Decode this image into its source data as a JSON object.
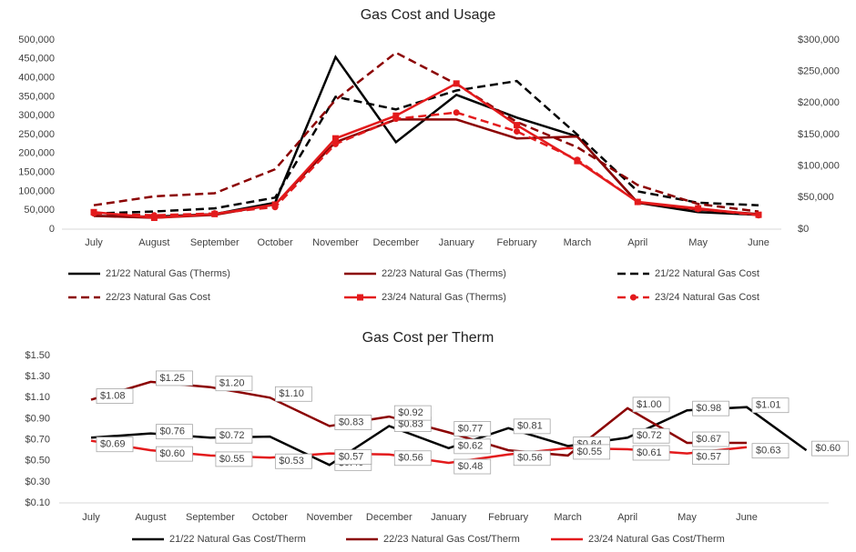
{
  "chart_data": [
    {
      "type": "line",
      "title": "Gas Cost and Usage",
      "categories": [
        "July",
        "August",
        "September",
        "October",
        "November",
        "December",
        "January",
        "February",
        "March",
        "April",
        "May",
        "June"
      ],
      "ylim": [
        0,
        500000
      ],
      "yticks": [
        0,
        {
          "value": 50000,
          "label": "50,000"
        },
        {
          "value": 100000,
          "label": "100,000"
        },
        {
          "value": 150000,
          "label": "150,000"
        },
        {
          "value": 200000,
          "label": "200,000"
        },
        {
          "value": 250000,
          "label": "250,000"
        },
        {
          "value": 300000,
          "label": "300,000"
        },
        {
          "value": 350000,
          "label": "350,000"
        },
        {
          "value": 400000,
          "label": "400,000"
        },
        {
          "value": 450000,
          "label": "450,000"
        },
        {
          "value": 500000,
          "label": "500,000"
        }
      ],
      "y2lim": [
        0,
        300000
      ],
      "y2ticks": [
        {
          "value": 0,
          "label": "$0"
        },
        {
          "value": 50000,
          "label": "$50,000"
        },
        {
          "value": 100000,
          "label": "$100,000"
        },
        {
          "value": 150000,
          "label": "$150,000"
        },
        {
          "value": 200000,
          "label": "$200,000"
        },
        {
          "value": 250000,
          "label": "$250,000"
        },
        {
          "value": 300000,
          "label": "$300,000"
        }
      ],
      "grid": false,
      "legend": "bottom",
      "series": [
        {
          "name": "21/22 Natural Gas (Therms)",
          "color": "#000000",
          "values": [
            35000,
            33000,
            40000,
            70000,
            455000,
            230000,
            355000,
            295000,
            245000,
            70000,
            45000,
            38000
          ]
        },
        {
          "name": "22/23 Natural Gas (Therms)",
          "color": "#8b0000",
          "values": [
            35000,
            30000,
            38000,
            65000,
            230000,
            290000,
            290000,
            240000,
            245000,
            70000,
            52000,
            40000
          ]
        },
        {
          "name": "21/22 Natural Gas Cost",
          "color": "#000000",
          "dash": true,
          "axis": "y2",
          "values": [
            25000,
            28000,
            33000,
            50000,
            210000,
            190000,
            220000,
            235000,
            150000,
            60000,
            42000,
            38000
          ]
        },
        {
          "name": "22/23 Natural Gas Cost",
          "color": "#8b0000",
          "dash": true,
          "axis": "y2",
          "values": [
            38000,
            52000,
            57000,
            95000,
            205000,
            280000,
            230000,
            170000,
            130000,
            70000,
            40000,
            28000
          ]
        },
        {
          "name": "23/24 Natural Gas (Therms)",
          "color": "#e31a1c",
          "marker": "square",
          "values": [
            45000,
            30000,
            40000,
            65000,
            240000,
            300000,
            385000,
            275000,
            180000,
            72000,
            55000,
            38000
          ]
        },
        {
          "name": "23/24 Natural Gas Cost",
          "color": "#e31a1c",
          "dash": true,
          "marker": "circle",
          "axis": "y2",
          "values": [
            25000,
            22000,
            25000,
            35000,
            135000,
            175000,
            185000,
            155000,
            110000,
            43000,
            32000,
            22000
          ]
        }
      ]
    },
    {
      "type": "line",
      "title": "Gas Cost per Therm",
      "categories": [
        "July",
        "August",
        "September",
        "October",
        "November",
        "December",
        "January",
        "February",
        "March",
        "April",
        "May",
        "June",
        null
      ],
      "ylim": [
        0.1,
        1.5
      ],
      "yticks": [
        {
          "value": 0.1,
          "label": "$0.10"
        },
        {
          "value": 0.3,
          "label": "$0.30"
        },
        {
          "value": 0.5,
          "label": "$0.50"
        },
        {
          "value": 0.7,
          "label": "$0.70"
        },
        {
          "value": 0.9,
          "label": "$0.90"
        },
        {
          "value": 1.1,
          "label": "$1.10"
        },
        {
          "value": 1.3,
          "label": "$1.30"
        },
        {
          "value": 1.5,
          "label": "$1.50"
        }
      ],
      "grid": false,
      "legend": "bottom",
      "series": [
        {
          "name": "21/22 Natural Gas Cost/Therm",
          "color": "#000000",
          "values": [
            0.72,
            0.76,
            0.72,
            0.73,
            0.46,
            0.83,
            0.62,
            0.81,
            0.64,
            0.72,
            0.98,
            1.01,
            0.6
          ],
          "value_labels": [
            null,
            "$0.76",
            "$0.72",
            null,
            "$0.46",
            "$0.83",
            "$0.62",
            "$0.81",
            "$0.64",
            "$0.72",
            "$0.98",
            "$1.01",
            "$0.60"
          ]
        },
        {
          "name": "22/23 Natural Gas Cost/Therm",
          "color": "#8b0000",
          "values": [
            1.08,
            1.25,
            1.2,
            1.1,
            0.83,
            0.92,
            0.77,
            0.6,
            0.55,
            1.0,
            0.67,
            0.67,
            null
          ],
          "value_labels": [
            "$1.08",
            "$1.25",
            "$1.20",
            "$1.10",
            "$0.83",
            "$0.92",
            "$0.77",
            null,
            "$0.55",
            "$1.00",
            "$0.67",
            null,
            null
          ]
        },
        {
          "name": "23/24 Natural Gas Cost/Therm",
          "color": "#e31a1c",
          "values": [
            0.69,
            0.6,
            0.55,
            0.53,
            0.57,
            0.56,
            0.48,
            0.56,
            0.62,
            0.61,
            0.57,
            0.63,
            null
          ],
          "value_labels": [
            "$0.69",
            "$0.60",
            "$0.55",
            "$0.53",
            "$0.57",
            "$0.56",
            "$0.48",
            "$0.56",
            null,
            "$0.61",
            "$0.57",
            "$0.63",
            null
          ]
        }
      ]
    }
  ]
}
